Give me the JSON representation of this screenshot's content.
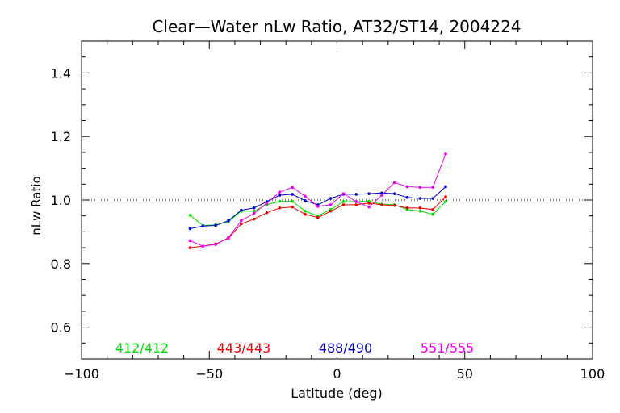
{
  "chart_data": {
    "type": "line",
    "title": "Clear—Water nLw Ratio, AT32/ST14, 2004224",
    "xlabel": "Latitude (deg)",
    "ylabel": "nLw Ratio",
    "xlim": [
      -100,
      100
    ],
    "ylim": [
      0.5,
      1.5
    ],
    "x_ticks": [
      -100,
      -50,
      0,
      50,
      100
    ],
    "x_tick_labels": [
      "−100",
      "−50",
      "0",
      "50",
      "100"
    ],
    "y_ticks": [
      0.6,
      0.8,
      1.0,
      1.2,
      1.4
    ],
    "y_tick_labels": [
      "0.6",
      "0.8",
      "1.0",
      "1.2",
      "1.4"
    ],
    "reference_line": 1.0,
    "grid": false,
    "legend_placement": "bottom-inside",
    "x": [
      -57.5,
      -52.5,
      -47.5,
      -42.5,
      -37.5,
      -32.5,
      -27.5,
      -22.5,
      -17.5,
      -12.5,
      -7.5,
      -2.5,
      2.5,
      7.5,
      12.5,
      17.5,
      22.5,
      27.5,
      32.5,
      37.5,
      42.5
    ],
    "series": [
      {
        "name": "412/412",
        "color": "#00dd00",
        "values": [
          0.952,
          0.92,
          0.922,
          0.932,
          0.965,
          0.965,
          0.985,
          0.996,
          0.996,
          0.965,
          0.95,
          0.97,
          0.995,
          0.995,
          0.996,
          0.987,
          0.985,
          0.97,
          0.965,
          0.955,
          0.995
        ]
      },
      {
        "name": "443/443",
        "color": "#ee0000",
        "values": [
          0.85,
          0.855,
          0.862,
          0.88,
          0.925,
          0.94,
          0.96,
          0.975,
          0.978,
          0.955,
          0.945,
          0.965,
          0.985,
          0.985,
          0.99,
          0.985,
          0.983,
          0.975,
          0.975,
          0.97,
          1.01
        ]
      },
      {
        "name": "488/490",
        "color": "#0000cc",
        "values": [
          0.91,
          0.918,
          0.92,
          0.935,
          0.968,
          0.975,
          0.995,
          1.015,
          1.018,
          0.998,
          0.985,
          1.005,
          1.018,
          1.018,
          1.02,
          1.022,
          1.02,
          1.008,
          1.005,
          1.005,
          1.042
        ]
      },
      {
        "name": "551/555",
        "color": "#ee00ee",
        "values": [
          0.872,
          0.855,
          0.86,
          0.882,
          0.935,
          0.958,
          0.99,
          1.025,
          1.04,
          1.012,
          0.98,
          0.985,
          1.02,
          0.995,
          0.978,
          1.015,
          1.055,
          1.042,
          1.04,
          1.04,
          1.145
        ]
      }
    ]
  }
}
